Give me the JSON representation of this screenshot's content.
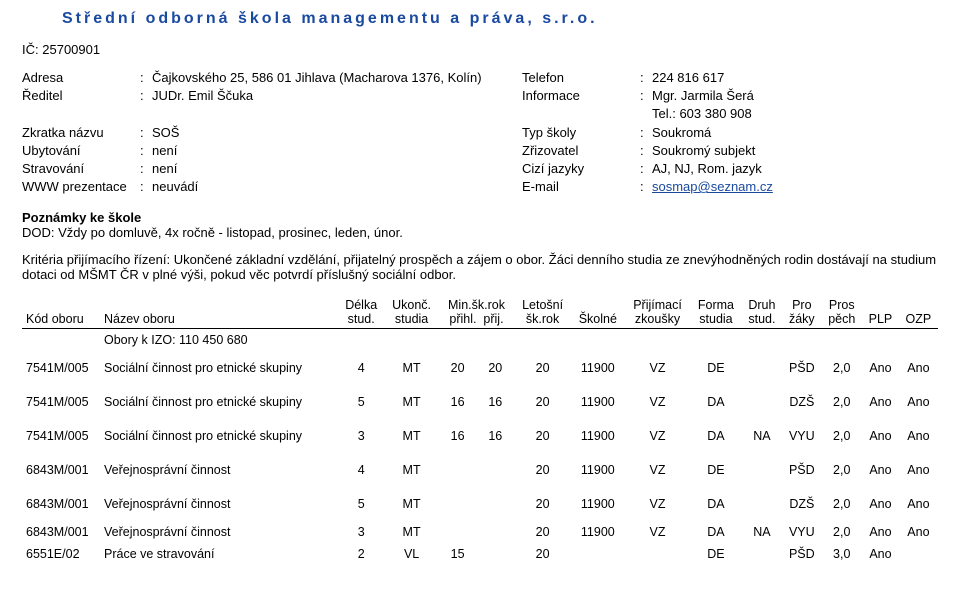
{
  "title": "Střední odborná škola managementu a práva, s.r.o.",
  "ic_label": "IČ:",
  "ic_value": "25700901",
  "left": {
    "adresa_k": "Adresa",
    "adresa_v": "Čajkovského 25, 586 01 Jihlava (Macharova 1376, Kolín)",
    "reditel_k": "Ředitel",
    "reditel_v": "JUDr. Emil Ščuka",
    "zkratka_k": "Zkratka názvu",
    "zkratka_v": "SOŠ",
    "ubyt_k": "Ubytování",
    "ubyt_v": "není",
    "strav_k": "Stravování",
    "strav_v": "není",
    "www_k": "WWW prezentace",
    "www_v": "neuvádí"
  },
  "right": {
    "tel_k": "Telefon",
    "tel_v": "224 816 617",
    "info_k": "Informace",
    "info_v": "Mgr. Jarmila Šerá",
    "tel2_v": "Tel.: 603 380 908",
    "typ_k": "Typ školy",
    "typ_v": "Soukromá",
    "zriz_k": "Zřizovatel",
    "zriz_v": "Soukromý subjekt",
    "jaz_k": "Cizí jazyky",
    "jaz_v": "AJ, NJ, Rom. jazyk",
    "mail_k": "E-mail",
    "mail_v": "sosmap@seznam.cz"
  },
  "notes_heading": "Poznámky ke škole",
  "notes_body": "DOD: Vždy po domluvě,  4x ročně - listopad, prosinec, leden, únor.",
  "criteria": "Kritéria přijímacího řízení: Ukončené základní vzdělání, přijatelný prospěch a zájem o obor. Žáci denního studia ze znevýhodněných rodin dostávají na studium dotaci od MŠMT ČR v plné výši, pokud věc potvrdí příslušný sociální odbor.",
  "columns": {
    "kod": "Kód oboru",
    "nazev": "Název oboru",
    "delka": "Délka\nstud.",
    "ukonc": "Ukonč.\nstudia",
    "minrok": "Min.šk.rok\npřihl.  přij.",
    "letos": "Letošní\nšk.rok",
    "skolne": "Školné",
    "prij": "Přijímací\nzkoušky",
    "forma": "Forma\nstudia",
    "druh": "Druh\nstud.",
    "pro": "Pro\nžáky",
    "pros": "Pros\npěch",
    "plp": "PLP",
    "ozp": "OZP"
  },
  "izo": "Obory k IZO: 110 450 680",
  "rows": [
    {
      "kod": "7541M/005",
      "nazev": "Sociální činnost pro etnické skupiny",
      "delka": "4",
      "ukonc": "MT",
      "prihl": "20",
      "prij": "20",
      "letos": "20",
      "skolne": "11900",
      "zk": "VZ",
      "forma": "DE",
      "druh": "",
      "pro": "PŠD",
      "pros": "2,0",
      "plp": "Ano",
      "ozp": "Ano"
    },
    {
      "kod": "7541M/005",
      "nazev": "Sociální činnost pro etnické skupiny",
      "delka": "5",
      "ukonc": "MT",
      "prihl": "16",
      "prij": "16",
      "letos": "20",
      "skolne": "11900",
      "zk": "VZ",
      "forma": "DA",
      "druh": "",
      "pro": "DZŠ",
      "pros": "2,0",
      "plp": "Ano",
      "ozp": "Ano"
    },
    {
      "kod": "7541M/005",
      "nazev": "Sociální činnost pro etnické skupiny",
      "delka": "3",
      "ukonc": "MT",
      "prihl": "16",
      "prij": "16",
      "letos": "20",
      "skolne": "11900",
      "zk": "VZ",
      "forma": "DA",
      "druh": "NA",
      "pro": "VYU",
      "pros": "2,0",
      "plp": "Ano",
      "ozp": "Ano"
    },
    {
      "kod": "6843M/001",
      "nazev": "Veřejnosprávní činnost",
      "delka": "4",
      "ukonc": "MT",
      "prihl": "",
      "prij": "",
      "letos": "20",
      "skolne": "11900",
      "zk": "VZ",
      "forma": "DE",
      "druh": "",
      "pro": "PŠD",
      "pros": "2,0",
      "plp": "Ano",
      "ozp": "Ano"
    },
    {
      "kod": "6843M/001",
      "nazev": "Veřejnosprávní činnost",
      "delka": "5",
      "ukonc": "MT",
      "prihl": "",
      "prij": "",
      "letos": "20",
      "skolne": "11900",
      "zk": "VZ",
      "forma": "DA",
      "druh": "",
      "pro": "DZŠ",
      "pros": "2,0",
      "plp": "Ano",
      "ozp": "Ano"
    },
    {
      "kod": "6843M/001",
      "nazev": "Veřejnosprávní činnost",
      "delka": "3",
      "ukonc": "MT",
      "prihl": "",
      "prij": "",
      "letos": "20",
      "skolne": "11900",
      "zk": "VZ",
      "forma": "DA",
      "druh": "NA",
      "pro": "VYU",
      "pros": "2,0",
      "plp": "Ano",
      "ozp": "Ano"
    },
    {
      "kod": "6551E/02",
      "nazev": "Práce ve stravování",
      "delka": "2",
      "ukonc": "VL",
      "prihl": "15",
      "prij": "",
      "letos": "20",
      "skolne": "",
      "zk": "",
      "forma": "DE",
      "druh": "",
      "pro": "PŠD",
      "pros": "3,0",
      "plp": "Ano",
      "ozp": ""
    }
  ]
}
